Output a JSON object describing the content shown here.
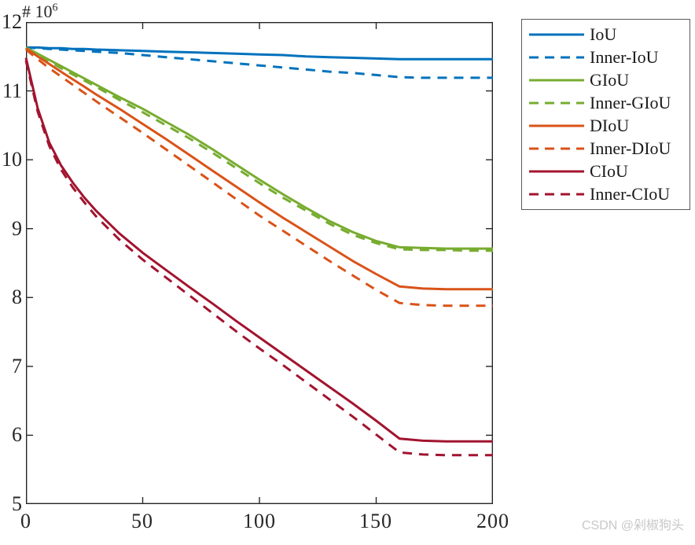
{
  "figure": {
    "background": "#ffffff",
    "axis_color": "#262626",
    "exponent_label": {
      "prefix": "# 10",
      "exponent": "6"
    },
    "watermark": "CSDN @剁椒狗头"
  },
  "chart_data": {
    "type": "line",
    "title": "",
    "xlabel": "",
    "ylabel": "",
    "grid": false,
    "legend_position": "outside-top-right",
    "x_range": [
      0,
      200
    ],
    "y_range": [
      5,
      12
    ],
    "y_scale_note": "y values are multiples of 10^6",
    "x_ticks": [
      0,
      50,
      100,
      150,
      200
    ],
    "x_tick_labels": [
      "0",
      "50",
      "100",
      "150",
      "200"
    ],
    "y_ticks": [
      5,
      6,
      7,
      8,
      9,
      10,
      11,
      12
    ],
    "y_tick_labels": [
      "5",
      "6",
      "7",
      "8",
      "9",
      "10",
      "11",
      "12"
    ],
    "x": [
      0,
      5,
      10,
      15,
      20,
      25,
      30,
      40,
      50,
      60,
      70,
      80,
      90,
      100,
      110,
      120,
      130,
      140,
      150,
      160,
      170,
      180,
      190,
      200
    ],
    "series": [
      {
        "name": "IoU",
        "color": "#0072BD",
        "line_style": "solid",
        "values": [
          11.63,
          11.63,
          11.62,
          11.62,
          11.61,
          11.61,
          11.6,
          11.59,
          11.58,
          11.57,
          11.56,
          11.55,
          11.54,
          11.53,
          11.52,
          11.5,
          11.49,
          11.48,
          11.47,
          11.46,
          11.46,
          11.46,
          11.46,
          11.46
        ]
      },
      {
        "name": "Inner-IoU",
        "color": "#0072BD",
        "line_style": "dashed",
        "values": [
          11.63,
          11.62,
          11.61,
          11.6,
          11.59,
          11.58,
          11.57,
          11.55,
          11.52,
          11.49,
          11.46,
          11.43,
          11.4,
          11.37,
          11.34,
          11.31,
          11.28,
          11.26,
          11.23,
          11.2,
          11.19,
          11.19,
          11.19,
          11.19
        ]
      },
      {
        "name": "GIoU",
        "color": "#77AC30",
        "line_style": "solid",
        "values": [
          11.63,
          11.54,
          11.45,
          11.36,
          11.27,
          11.18,
          11.09,
          10.91,
          10.74,
          10.55,
          10.36,
          10.15,
          9.93,
          9.71,
          9.5,
          9.3,
          9.11,
          8.95,
          8.82,
          8.73,
          8.72,
          8.71,
          8.71,
          8.71
        ]
      },
      {
        "name": "Inner-GIoU",
        "color": "#77AC30",
        "line_style": "dashed",
        "values": [
          11.62,
          11.52,
          11.43,
          11.33,
          11.24,
          11.15,
          11.06,
          10.87,
          10.69,
          10.5,
          10.31,
          10.1,
          9.88,
          9.66,
          9.45,
          9.26,
          9.07,
          8.91,
          8.79,
          8.7,
          8.69,
          8.69,
          8.68,
          8.68
        ]
      },
      {
        "name": "DIoU",
        "color": "#D95319",
        "line_style": "solid",
        "values": [
          11.62,
          11.5,
          11.39,
          11.28,
          11.17,
          11.06,
          10.95,
          10.74,
          10.52,
          10.3,
          10.07,
          9.84,
          9.61,
          9.38,
          9.16,
          8.95,
          8.74,
          8.53,
          8.34,
          8.16,
          8.13,
          8.12,
          8.12,
          8.12
        ]
      },
      {
        "name": "Inner-DIoU",
        "color": "#D95319",
        "line_style": "dashed",
        "values": [
          11.6,
          11.46,
          11.33,
          11.21,
          11.09,
          10.97,
          10.85,
          10.62,
          10.39,
          10.15,
          9.91,
          9.67,
          9.43,
          9.19,
          8.97,
          8.75,
          8.53,
          8.32,
          8.11,
          7.92,
          7.89,
          7.88,
          7.88,
          7.88
        ]
      },
      {
        "name": "CIoU",
        "color": "#A2142F",
        "line_style": "solid",
        "values": [
          11.48,
          10.75,
          10.25,
          9.92,
          9.67,
          9.45,
          9.26,
          8.93,
          8.65,
          8.4,
          8.15,
          7.91,
          7.66,
          7.42,
          7.18,
          6.94,
          6.7,
          6.46,
          6.21,
          5.95,
          5.92,
          5.91,
          5.91,
          5.91
        ]
      },
      {
        "name": "Inner-CIoU",
        "color": "#A2142F",
        "line_style": "dashed",
        "values": [
          11.44,
          10.7,
          10.2,
          9.86,
          9.6,
          9.38,
          9.18,
          8.84,
          8.55,
          8.29,
          8.03,
          7.77,
          7.51,
          7.26,
          7.02,
          6.77,
          6.52,
          6.27,
          6.01,
          5.75,
          5.72,
          5.71,
          5.71,
          5.71
        ]
      }
    ]
  }
}
